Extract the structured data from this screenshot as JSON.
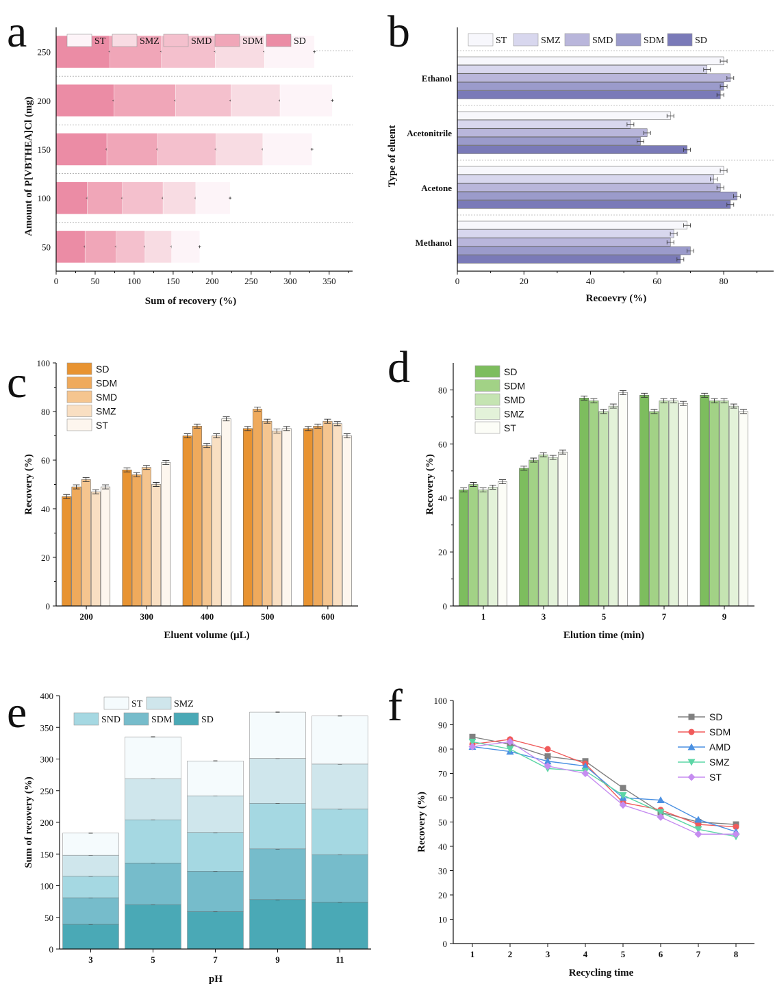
{
  "chart_data": [
    {
      "type": "bar",
      "panel": "a",
      "orientation": "horizontal",
      "stacked": true,
      "categories": [
        "50",
        "100",
        "150",
        "200",
        "250"
      ],
      "series": [
        {
          "name": "SD",
          "color": "#eb8ca5",
          "values": [
            37,
            40,
            65,
            74,
            69
          ]
        },
        {
          "name": "SDM",
          "color": "#f0a6b8",
          "values": [
            40,
            45,
            65,
            79,
            66
          ]
        },
        {
          "name": "SMD",
          "color": "#f4c0cd",
          "values": [
            37,
            52,
            75,
            71,
            69
          ]
        },
        {
          "name": "SMZ",
          "color": "#f8dce3",
          "values": [
            34,
            42,
            60,
            63,
            63
          ]
        },
        {
          "name": "ST",
          "color": "#fdf4f8",
          "values": [
            36,
            44,
            63,
            67,
            64
          ]
        }
      ],
      "legend_order": [
        "ST",
        "SMZ",
        "SMD",
        "SDM",
        "SD"
      ],
      "xlabel": "Sum of recovery (%)",
      "ylabel": "Amount of  P[VBTHEA]Cl (mg)",
      "xlim": [
        0,
        380
      ],
      "xticks": [
        "0",
        "50",
        "100",
        "150",
        "200",
        "250",
        "300",
        "350"
      ],
      "error_bars": true,
      "legend": "top"
    },
    {
      "type": "bar",
      "panel": "b",
      "orientation": "horizontal",
      "categories": [
        "Methanol",
        "Acetone",
        "Acetonitrile",
        "Ethanol"
      ],
      "series": [
        {
          "name": "SD",
          "color": "#7a7ab8",
          "values": [
            67,
            82,
            69,
            79
          ]
        },
        {
          "name": "SDM",
          "color": "#9b9bcb",
          "values": [
            70,
            84,
            55,
            80
          ]
        },
        {
          "name": "SMD",
          "color": "#b9b6db",
          "values": [
            64,
            79,
            57,
            82
          ]
        },
        {
          "name": "SMZ",
          "color": "#d8d7ee",
          "values": [
            65,
            77,
            52,
            75
          ]
        },
        {
          "name": "ST",
          "color": "#f7f7fc",
          "values": [
            69,
            80,
            64,
            80
          ]
        }
      ],
      "legend_order": [
        "ST",
        "SMZ",
        "SMD",
        "SDM",
        "SD"
      ],
      "xlabel": "Recoevry (%)",
      "ylabel": "Type of eluent",
      "xlim": [
        0,
        95
      ],
      "xticks": [
        "0",
        "20",
        "40",
        "60",
        "80"
      ],
      "error_bars": true,
      "legend": "top"
    },
    {
      "type": "bar",
      "panel": "c",
      "categories": [
        "200",
        "300",
        "400",
        "500",
        "600"
      ],
      "series": [
        {
          "name": "SD",
          "color": "#e89331",
          "values": [
            45,
            56,
            70,
            73,
            73
          ]
        },
        {
          "name": "SDM",
          "color": "#efaa5c",
          "values": [
            49,
            54,
            74,
            81,
            74
          ]
        },
        {
          "name": "SMD",
          "color": "#f5c58f",
          "values": [
            52,
            57,
            66,
            76,
            76
          ]
        },
        {
          "name": "SMZ",
          "color": "#f9dfc2",
          "values": [
            47,
            50,
            70,
            72,
            75
          ]
        },
        {
          "name": "ST",
          "color": "#fdf6ee",
          "values": [
            49,
            59,
            77,
            73,
            70
          ]
        }
      ],
      "xlabel": "Eluent volume (μL)",
      "ylabel": "Recovery (%)",
      "ylim": [
        0,
        100
      ],
      "yticks": [
        "0",
        "20",
        "40",
        "60",
        "80",
        "100"
      ],
      "error_bars": true,
      "legend": "top-left"
    },
    {
      "type": "bar",
      "panel": "d",
      "categories": [
        "1",
        "3",
        "5",
        "7",
        "9"
      ],
      "series": [
        {
          "name": "SD",
          "color": "#7dbd5e",
          "values": [
            43,
            51,
            77,
            78,
            78
          ]
        },
        {
          "name": "SDM",
          "color": "#a2d286",
          "values": [
            45,
            54,
            76,
            72,
            76
          ]
        },
        {
          "name": "SMD",
          "color": "#c5e4b2",
          "values": [
            43,
            56,
            72,
            76,
            76
          ]
        },
        {
          "name": "SMZ",
          "color": "#e3f2d9",
          "values": [
            44,
            55,
            74,
            76,
            74
          ]
        },
        {
          "name": "ST",
          "color": "#fcfdf7",
          "values": [
            46,
            57,
            79,
            75,
            72
          ]
        }
      ],
      "xlabel": "Elution time (min)",
      "ylabel": "Recovery (%)",
      "ylim": [
        0,
        90
      ],
      "yticks": [
        "0",
        "20",
        "40",
        "60",
        "80"
      ],
      "error_bars": true,
      "legend": "top-left"
    },
    {
      "type": "bar",
      "panel": "e",
      "stacked": true,
      "categories": [
        "3",
        "5",
        "7",
        "9",
        "11"
      ],
      "series": [
        {
          "name": "SD",
          "color": "#4aa9b6",
          "values": [
            39,
            70,
            59,
            78,
            74
          ]
        },
        {
          "name": "SDM",
          "color": "#76bccb",
          "values": [
            42,
            66,
            64,
            80,
            75
          ]
        },
        {
          "name": "SND",
          "color": "#a5d8e2",
          "values": [
            34,
            68,
            61,
            72,
            72
          ]
        },
        {
          "name": "SMZ",
          "color": "#cfe6ec",
          "values": [
            33,
            65,
            58,
            71,
            71
          ]
        },
        {
          "name": "ST",
          "color": "#f5fbfd",
          "values": [
            35,
            66,
            55,
            73,
            76
          ]
        }
      ],
      "legend_order": [
        "ST",
        "SMZ",
        "SND",
        "SDM",
        "SD"
      ],
      "xlabel": "pH",
      "ylabel": "Sum of recovery (%)",
      "ylim": [
        0,
        400
      ],
      "yticks": [
        "0",
        "50",
        "100",
        "150",
        "200",
        "250",
        "300",
        "350",
        "400"
      ],
      "error_bars": true,
      "legend": "top"
    },
    {
      "type": "line",
      "panel": "f",
      "x": [
        1,
        2,
        3,
        4,
        5,
        6,
        7,
        8
      ],
      "series": [
        {
          "name": "SD",
          "color": "#808080",
          "marker": "square",
          "values": [
            85,
            82,
            77,
            75,
            64,
            54,
            50,
            49
          ]
        },
        {
          "name": "SDM",
          "color": "#f05a5a",
          "marker": "circle",
          "values": [
            82,
            84,
            80,
            74,
            58,
            55,
            49,
            48
          ]
        },
        {
          "name": "AMD",
          "color": "#4a90e2",
          "marker": "triangle-up",
          "values": [
            81,
            79,
            75,
            73,
            60,
            59,
            51,
            46
          ]
        },
        {
          "name": "SMZ",
          "color": "#5cd6a6",
          "marker": "triangle-down",
          "values": [
            83,
            80,
            72,
            71,
            61,
            54,
            47,
            44
          ]
        },
        {
          "name": "ST",
          "color": "#c58cf0",
          "marker": "diamond",
          "values": [
            81,
            83,
            73,
            70,
            57,
            52,
            45,
            45
          ]
        }
      ],
      "xlabel": "Recycling time",
      "ylabel": "Recovery (%)",
      "ylim": [
        0,
        100
      ],
      "yticks": [
        "0",
        "10",
        "20",
        "30",
        "40",
        "50",
        "60",
        "70",
        "80",
        "90",
        "100"
      ],
      "xticks": [
        "1",
        "2",
        "3",
        "4",
        "5",
        "6",
        "7",
        "8"
      ],
      "legend": "top-right"
    }
  ],
  "panel_labels": [
    "a",
    "b",
    "c",
    "d",
    "e",
    "f"
  ]
}
